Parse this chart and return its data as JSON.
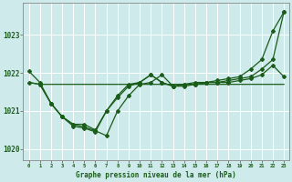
{
  "title": "Graphe pression niveau de la mer (hPa)",
  "background_color": "#ceeaea",
  "line_color": "#1a5c1a",
  "grid_color": "#b8d8d8",
  "xlim": [
    -0.5,
    23.5
  ],
  "ylim": [
    1019.7,
    1023.85
  ],
  "yticks": [
    1020,
    1021,
    1022,
    1023
  ],
  "figsize": [
    3.2,
    2.0
  ],
  "dpi": 100,
  "series": [
    {
      "x": [
        0,
        1,
        2,
        3,
        4,
        5,
        6,
        7,
        8,
        9,
        10,
        11,
        12,
        13,
        14,
        15,
        16,
        17,
        18,
        19,
        20,
        21,
        22,
        23
      ],
      "y": [
        1021.75,
        1021.7,
        1021.7,
        1021.7,
        1021.7,
        1021.7,
        1021.7,
        1021.7,
        1021.7,
        1021.7,
        1021.7,
        1021.7,
        1021.7,
        1021.7,
        1021.7,
        1021.7,
        1021.7,
        1021.7,
        1021.7,
        1021.7,
        1021.7,
        1021.7,
        1021.7,
        1021.7
      ],
      "has_markers": false,
      "linewidth": 0.9
    },
    {
      "x": [
        0,
        1,
        2,
        3,
        4,
        5,
        6,
        7,
        8,
        9,
        10,
        11,
        12,
        13,
        14,
        15,
        16,
        17,
        18,
        19,
        20,
        21,
        22,
        23
      ],
      "y": [
        1022.05,
        1021.75,
        1021.2,
        1020.85,
        1020.65,
        1020.65,
        1020.5,
        1021.0,
        1021.35,
        1021.65,
        1021.75,
        1021.95,
        1021.75,
        1021.65,
        1021.7,
        1021.7,
        1021.75,
        1021.75,
        1021.75,
        1021.8,
        1021.85,
        1021.95,
        1022.2,
        1021.9
      ],
      "has_markers": true,
      "linewidth": 0.9
    },
    {
      "x": [
        0,
        1,
        2,
        3,
        4,
        5,
        6,
        7,
        8,
        9,
        10,
        11,
        12,
        13,
        14,
        15,
        16,
        17,
        18,
        19,
        20,
        21,
        22,
        23
      ],
      "y": [
        1021.75,
        1021.7,
        1021.2,
        1020.85,
        1020.6,
        1020.55,
        1020.45,
        1021.0,
        1021.4,
        1021.7,
        1021.75,
        1021.95,
        1021.75,
        1021.65,
        1021.7,
        1021.75,
        1021.75,
        1021.8,
        1021.85,
        1021.9,
        1022.1,
        1022.35,
        1023.1,
        1023.6
      ],
      "has_markers": true,
      "linewidth": 0.9
    },
    {
      "x": [
        1,
        2,
        3,
        4,
        5,
        6,
        7,
        8,
        9,
        10,
        11,
        12,
        13,
        14,
        15,
        16,
        17,
        18,
        19,
        20,
        21,
        22,
        23
      ],
      "y": [
        1021.7,
        1021.2,
        1020.85,
        1020.65,
        1020.58,
        1020.48,
        1020.35,
        1021.0,
        1021.4,
        1021.7,
        1021.75,
        1021.95,
        1021.65,
        1021.65,
        1021.7,
        1021.75,
        1021.75,
        1021.8,
        1021.85,
        1021.9,
        1022.1,
        1022.35,
        1023.6
      ],
      "has_markers": true,
      "linewidth": 0.9
    }
  ]
}
